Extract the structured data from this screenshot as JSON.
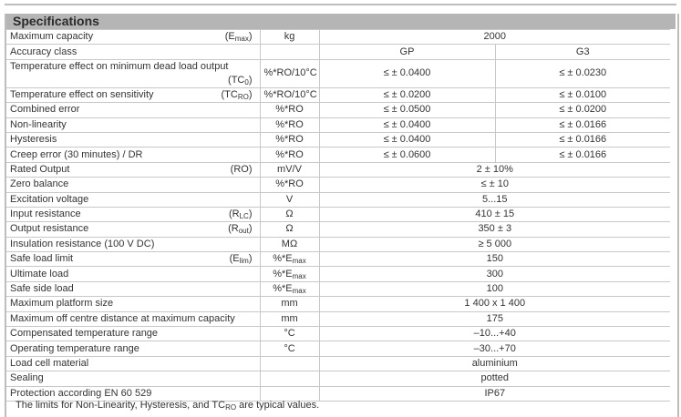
{
  "title": "Specifications",
  "rows": [
    {
      "label": "Maximum capacity",
      "sym": "(E",
      "sym_sub": "max",
      "sym_end": ")",
      "unit": "kg",
      "unit_sub": "",
      "value": "2000"
    },
    {
      "label": "Accuracy class",
      "sym": "",
      "sym_sub": "",
      "sym_end": "",
      "unit": "",
      "unit_sub": "",
      "gp": "GP",
      "g3": "G3"
    },
    {
      "label": "Temperature effect on minimum dead load output",
      "sym": "(TC",
      "sym_sub": "0",
      "sym_end": ")",
      "unit": "%*RO/10°C",
      "unit_sub": "",
      "gp": "≤ ± 0.0400",
      "g3": "≤ ± 0.0230"
    },
    {
      "label": "Temperature effect on sensitivity",
      "sym": "(TC",
      "sym_sub": "RO",
      "sym_end": ")",
      "unit": "%*RO/10°C",
      "unit_sub": "",
      "gp": "≤ ± 0.0200",
      "g3": "≤ ± 0.0100"
    },
    {
      "label": "Combined error",
      "sym": "",
      "sym_sub": "",
      "sym_end": "",
      "unit": "%*RO",
      "unit_sub": "",
      "gp": "≤ ± 0.0500",
      "g3": "≤ ± 0.0200"
    },
    {
      "label": "Non-linearity",
      "sym": "",
      "sym_sub": "",
      "sym_end": "",
      "unit": "%*RO",
      "unit_sub": "",
      "gp": "≤ ± 0.0400",
      "g3": "≤ ± 0.0166"
    },
    {
      "label": "Hysteresis",
      "sym": "",
      "sym_sub": "",
      "sym_end": "",
      "unit": "%*RO",
      "unit_sub": "",
      "gp": "≤ ± 0.0400",
      "g3": "≤ ± 0.0166"
    },
    {
      "label": "Creep error (30 minutes) / DR",
      "sym": "",
      "sym_sub": "",
      "sym_end": "",
      "unit": "%*RO",
      "unit_sub": "",
      "gp": "≤ ± 0.0600",
      "g3": "≤ ± 0.0166"
    },
    {
      "label": "Rated Output",
      "sym": "(RO)",
      "sym_sub": "",
      "sym_end": "",
      "unit": "mV/V",
      "unit_sub": "",
      "value": "2 ± 10%"
    },
    {
      "label": "Zero balance",
      "sym": "",
      "sym_sub": "",
      "sym_end": "",
      "unit": "%*RO",
      "unit_sub": "",
      "value": "≤ ± 10"
    },
    {
      "label": "Excitation voltage",
      "sym": "",
      "sym_sub": "",
      "sym_end": "",
      "unit": "V",
      "unit_sub": "",
      "value": "5...15"
    },
    {
      "label": "Input resistance",
      "sym": "(R",
      "sym_sub": "LC",
      "sym_end": ")",
      "unit": "Ω",
      "unit_sub": "",
      "value": "410 ± 15"
    },
    {
      "label": "Output resistance",
      "sym": "(R",
      "sym_sub": "out",
      "sym_end": ")",
      "unit": "Ω",
      "unit_sub": "",
      "value": "350 ± 3"
    },
    {
      "label": "Insulation resistance (100 V DC)",
      "sym": "",
      "sym_sub": "",
      "sym_end": "",
      "unit": "MΩ",
      "unit_sub": "",
      "value": "≥ 5 000"
    },
    {
      "label": "Safe load limit",
      "sym": "(E",
      "sym_sub": "lim",
      "sym_end": ")",
      "unit": "%*E",
      "unit_sub": "max",
      "value": "150"
    },
    {
      "label": "Ultimate load",
      "sym": "",
      "sym_sub": "",
      "sym_end": "",
      "unit": "%*E",
      "unit_sub": "max",
      "value": "300"
    },
    {
      "label": "Safe side load",
      "sym": "",
      "sym_sub": "",
      "sym_end": "",
      "unit": "%*E",
      "unit_sub": "max",
      "value": "100"
    },
    {
      "label": "Maximum platform size",
      "sym": "",
      "sym_sub": "",
      "sym_end": "",
      "unit": "mm",
      "unit_sub": "",
      "value": "1 400 x 1 400"
    },
    {
      "label": "Maximum off centre distance at maximum capacity",
      "sym": "",
      "sym_sub": "",
      "sym_end": "",
      "unit": "mm",
      "unit_sub": "",
      "value": "175"
    },
    {
      "label": "Compensated temperature range",
      "sym": "",
      "sym_sub": "",
      "sym_end": "",
      "unit": "°C",
      "unit_sub": "",
      "value": "–10...+40"
    },
    {
      "label": "Operating temperature range",
      "sym": "",
      "sym_sub": "",
      "sym_end": "",
      "unit": "°C",
      "unit_sub": "",
      "value": "–30...+70"
    },
    {
      "label": "Load cell material",
      "sym": "",
      "sym_sub": "",
      "sym_end": "",
      "unit": "",
      "unit_sub": "",
      "value": "aluminium"
    },
    {
      "label": "Sealing",
      "sym": "",
      "sym_sub": "",
      "sym_end": "",
      "unit": "",
      "unit_sub": "",
      "value": "potted"
    },
    {
      "label": "Protection according EN 60 529",
      "sym": "",
      "sym_sub": "",
      "sym_end": "",
      "unit": "",
      "unit_sub": "",
      "value": "IP67"
    }
  ],
  "note": {
    "pre": "The limits for Non-Linearity, Hysteresis, and TC",
    "sub": "RO",
    "post": " are typical values."
  }
}
